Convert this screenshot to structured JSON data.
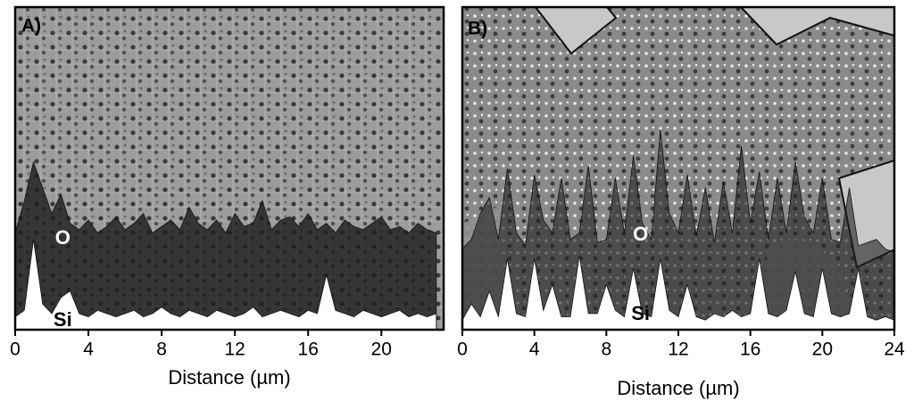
{
  "chart_data": [
    {
      "type": "area",
      "panel_label": "A)",
      "x_label": "Distance (µm)",
      "xlim": [
        0,
        23.4
      ],
      "xticks": [
        0,
        4,
        8,
        12,
        16,
        20
      ],
      "x": [
        0,
        0.5,
        1,
        1.5,
        2,
        2.5,
        3,
        3.5,
        4,
        4.5,
        5,
        5.5,
        6,
        6.5,
        7,
        7.5,
        8,
        8.5,
        9,
        9.5,
        10,
        10.5,
        11,
        11.5,
        12,
        12.5,
        13,
        13.5,
        14,
        14.5,
        15,
        15.5,
        16,
        16.5,
        17,
        17.5,
        18,
        18.5,
        19,
        19.5,
        20,
        20.5,
        21,
        21.5,
        22,
        22.5,
        23
      ],
      "series": [
        {
          "name": "O",
          "color": "#1e1e1e",
          "values": [
            30,
            40,
            52,
            44,
            36,
            42,
            33,
            31,
            34,
            30,
            32,
            35,
            31,
            33,
            36,
            30,
            32,
            34,
            31,
            38,
            33,
            31,
            34,
            30,
            36,
            32,
            33,
            40,
            31,
            34,
            35,
            32,
            36,
            31,
            33,
            30,
            34,
            32,
            31,
            33,
            35,
            31,
            32,
            30,
            33,
            31,
            30
          ]
        },
        {
          "name": "Si",
          "color": "#ffffff",
          "values": [
            4,
            6,
            28,
            8,
            5,
            10,
            12,
            5,
            4,
            6,
            5,
            4,
            5,
            6,
            4,
            5,
            7,
            5,
            4,
            6,
            5,
            4,
            6,
            5,
            4,
            5,
            7,
            4,
            5,
            6,
            5,
            4,
            6,
            5,
            17,
            6,
            5,
            4,
            6,
            5,
            4,
            5,
            6,
            4,
            5,
            4,
            5
          ]
        }
      ]
    },
    {
      "type": "area",
      "panel_label": "B)",
      "x_label": "Distance (µm)",
      "xlim": [
        0,
        24
      ],
      "xticks": [
        0,
        4,
        8,
        12,
        16,
        20,
        24
      ],
      "x": [
        0,
        0.5,
        1,
        1.5,
        2,
        2.5,
        3,
        3.5,
        4,
        4.5,
        5,
        5.5,
        6,
        6.5,
        7,
        7.5,
        8,
        8.5,
        9,
        9.5,
        10,
        10.5,
        11,
        11.5,
        12,
        12.5,
        13,
        13.5,
        14,
        14.5,
        15,
        15.5,
        16,
        16.5,
        17,
        17.5,
        18,
        18.5,
        19,
        19.5,
        20,
        20.5,
        21,
        21.5,
        22,
        22.5,
        23,
        23.5,
        24
      ],
      "series": [
        {
          "name": "O",
          "color": "#222222",
          "values": [
            25,
            28,
            36,
            41,
            28,
            50,
            30,
            26,
            48,
            34,
            30,
            47,
            28,
            30,
            51,
            27,
            28,
            47,
            30,
            54,
            33,
            28,
            62,
            36,
            30,
            48,
            29,
            44,
            27,
            46,
            30,
            57,
            33,
            49,
            28,
            47,
            30,
            52,
            35,
            30,
            47,
            28,
            27,
            44,
            26,
            27,
            28,
            25,
            24
          ]
        },
        {
          "name": "Si",
          "color": "#ffffff",
          "values": [
            3,
            8,
            4,
            12,
            4,
            22,
            5,
            4,
            22,
            6,
            14,
            4,
            4,
            23,
            5,
            5,
            14,
            6,
            4,
            19,
            5,
            4,
            22,
            6,
            4,
            14,
            4,
            3,
            5,
            4,
            6,
            4,
            5,
            22,
            5,
            4,
            6,
            18,
            5,
            4,
            19,
            5,
            4,
            5,
            19,
            4,
            3,
            4,
            3
          ]
        }
      ]
    }
  ]
}
